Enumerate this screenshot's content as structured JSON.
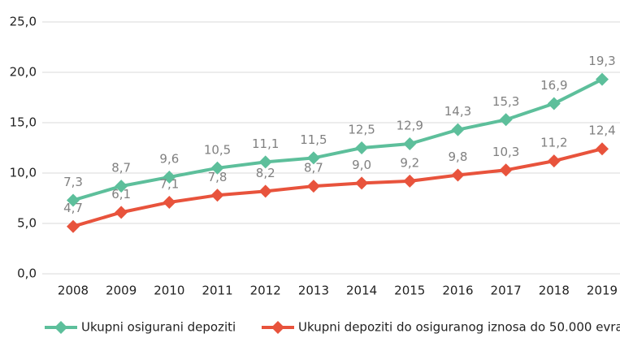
{
  "chart_data": {
    "type": "line",
    "categories": [
      "2008",
      "2009",
      "2010",
      "2011",
      "2012",
      "2013",
      "2014",
      "2015",
      "2016",
      "2017",
      "2018",
      "2019"
    ],
    "series": [
      {
        "name": "Ukupni osigurani depoziti",
        "color": "#5dbf9b",
        "values": [
          7.3,
          8.7,
          9.6,
          10.5,
          11.1,
          11.5,
          12.5,
          12.9,
          14.3,
          15.3,
          16.9,
          19.3
        ],
        "value_labels": [
          "7,3",
          "8,7",
          "9,6",
          "10,5",
          "11,1",
          "11,5",
          "12,5",
          "12,9",
          "14,3",
          "15,3",
          "16,9",
          "19,3"
        ]
      },
      {
        "name": "Ukupni depoziti do osiguranog iznosa do 50.000 evra",
        "color": "#e8533c",
        "values": [
          4.7,
          6.1,
          7.1,
          7.8,
          8.2,
          8.7,
          9.0,
          9.2,
          9.8,
          10.3,
          11.2,
          12.4
        ],
        "value_labels": [
          "4,7",
          "6,1",
          "7,1",
          "7,8",
          "8,2",
          "8,7",
          "9,0",
          "9,2",
          "9,8",
          "10,3",
          "11,2",
          "12,4"
        ]
      }
    ],
    "ylim": [
      0,
      25
    ],
    "yticks": [
      {
        "value": 0,
        "label": "0,0"
      },
      {
        "value": 5,
        "label": "5,0"
      },
      {
        "value": 10,
        "label": "10,0"
      },
      {
        "value": 15,
        "label": "15,0"
      },
      {
        "value": 20,
        "label": "20,0"
      },
      {
        "value": 25,
        "label": "25,0"
      }
    ],
    "grid": true,
    "legend": "bottom"
  }
}
